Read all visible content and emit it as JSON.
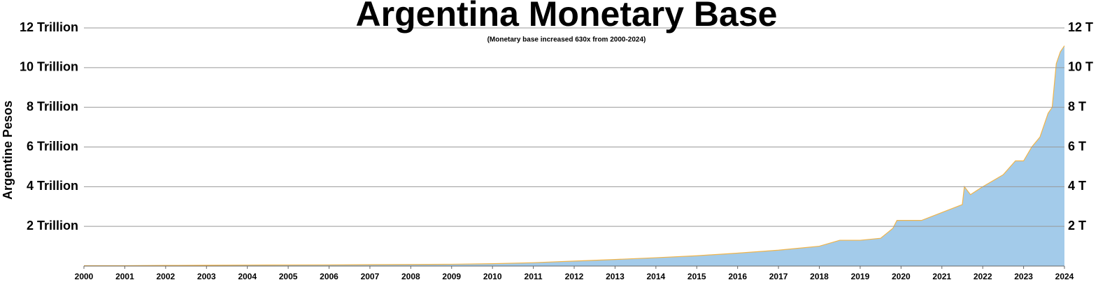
{
  "chart_data": {
    "type": "area",
    "title": "Argentina Monetary Base",
    "subtitle": "(Monetary base increased 630x from 2000-2024)",
    "y_label": "Argentine Pesos",
    "x": [
      2000,
      2001,
      2002,
      2003,
      2004,
      2005,
      2006,
      2007,
      2008,
      2009,
      2010,
      2011,
      2012,
      2013,
      2014,
      2015,
      2016,
      2017,
      2018,
      2018.5,
      2019,
      2019.5,
      2019.8,
      2019.9,
      2020,
      2020.5,
      2021,
      2021.5,
      2021.55,
      2021.7,
      2022,
      2022.5,
      2022.8,
      2023,
      2023.2,
      2023.4,
      2023.6,
      2023.7,
      2023.8,
      2023.9,
      2024
    ],
    "values": [
      0.017,
      0.02,
      0.03,
      0.04,
      0.05,
      0.055,
      0.06,
      0.07,
      0.08,
      0.09,
      0.12,
      0.17,
      0.25,
      0.33,
      0.42,
      0.52,
      0.65,
      0.8,
      1.0,
      1.3,
      1.3,
      1.4,
      1.9,
      2.3,
      2.3,
      2.3,
      2.7,
      3.1,
      4.0,
      3.6,
      4.0,
      4.6,
      5.3,
      5.3,
      6.0,
      6.5,
      7.7,
      8.0,
      10.2,
      10.8,
      11.1
    ],
    "color": "#a3cbea",
    "line_color": "#f0b44a",
    "xlim": [
      2000,
      2024
    ],
    "xticks": [
      2000,
      2001,
      2002,
      2003,
      2004,
      2005,
      2006,
      2007,
      2008,
      2009,
      2010,
      2011,
      2012,
      2013,
      2014,
      2015,
      2016,
      2017,
      2018,
      2019,
      2020,
      2021,
      2022,
      2023,
      2024
    ],
    "ylim": [
      0,
      12
    ],
    "yticks": [
      {
        "value": 2,
        "label": "2 Trillion"
      },
      {
        "value": 4,
        "label": "4 Trillion"
      },
      {
        "value": 6,
        "label": "6 Trillion"
      },
      {
        "value": 8,
        "label": "8 Trillion"
      },
      {
        "value": 10,
        "label": "10 Trillion"
      },
      {
        "value": 12,
        "label": "12 Trillion"
      }
    ],
    "y2lim": [
      0,
      12
    ],
    "y2ticks": [
      {
        "value": 2,
        "label": "2 T"
      },
      {
        "value": 4,
        "label": "4 T"
      },
      {
        "value": 6,
        "label": "6 T"
      },
      {
        "value": 8,
        "label": "8 T"
      },
      {
        "value": 10,
        "label": "10 T"
      },
      {
        "value": 12,
        "label": "12 T"
      }
    ],
    "grid": true
  }
}
